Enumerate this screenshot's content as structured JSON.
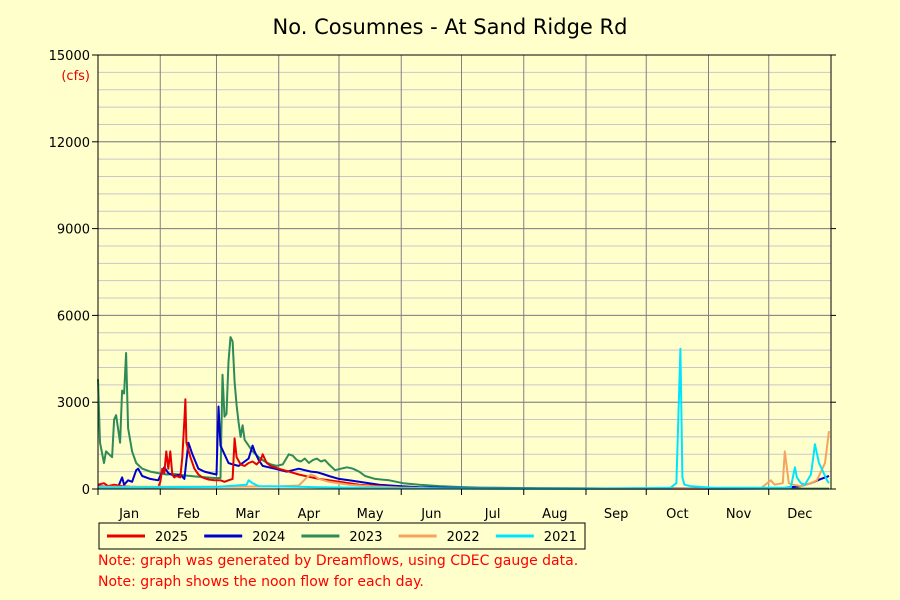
{
  "chart_data": {
    "type": "line",
    "title": "No. Cosumnes - At Sand Ridge Rd",
    "ylabel": "(cfs)",
    "ylim": [
      0,
      15000
    ],
    "yticks": [
      0,
      3000,
      6000,
      9000,
      12000,
      15000
    ],
    "xlim": [
      0,
      365
    ],
    "months": [
      "Jan",
      "Feb",
      "Mar",
      "Apr",
      "May",
      "Jun",
      "Jul",
      "Aug",
      "Sep",
      "Oct",
      "Nov",
      "Dec"
    ],
    "month_starts": [
      0,
      31,
      59,
      90,
      120,
      151,
      181,
      212,
      243,
      273,
      304,
      334
    ],
    "grid": true,
    "legend_position": "bottom",
    "series": [
      {
        "name": "2023",
        "color": "#2e8b57",
        "points": [
          [
            0,
            3800
          ],
          [
            1,
            1600
          ],
          [
            3,
            900
          ],
          [
            4,
            1300
          ],
          [
            7,
            1100
          ],
          [
            8,
            2400
          ],
          [
            9,
            2550
          ],
          [
            11,
            1600
          ],
          [
            12,
            3400
          ],
          [
            13,
            3300
          ],
          [
            14,
            4700
          ],
          [
            15,
            2100
          ],
          [
            17,
            1300
          ],
          [
            19,
            900
          ],
          [
            22,
            700
          ],
          [
            26,
            600
          ],
          [
            30,
            550
          ],
          [
            34,
            500
          ],
          [
            38,
            520
          ],
          [
            42,
            480
          ],
          [
            46,
            450
          ],
          [
            50,
            420
          ],
          [
            54,
            400
          ],
          [
            58,
            380
          ],
          [
            61,
            380
          ],
          [
            62,
            3950
          ],
          [
            63,
            2500
          ],
          [
            64,
            2600
          ],
          [
            65,
            4400
          ],
          [
            66,
            5250
          ],
          [
            67,
            5100
          ],
          [
            68,
            3700
          ],
          [
            69,
            2900
          ],
          [
            70,
            2300
          ],
          [
            71,
            1800
          ],
          [
            72,
            2200
          ],
          [
            73,
            1700
          ],
          [
            75,
            1500
          ],
          [
            77,
            1300
          ],
          [
            80,
            1100
          ],
          [
            83,
            950
          ],
          [
            86,
            850
          ],
          [
            89,
            800
          ],
          [
            92,
            850
          ],
          [
            95,
            1200
          ],
          [
            97,
            1150
          ],
          [
            99,
            1000
          ],
          [
            101,
            950
          ],
          [
            103,
            1050
          ],
          [
            105,
            900
          ],
          [
            107,
            1000
          ],
          [
            109,
            1050
          ],
          [
            111,
            950
          ],
          [
            113,
            1000
          ],
          [
            115,
            850
          ],
          [
            118,
            650
          ],
          [
            121,
            700
          ],
          [
            124,
            750
          ],
          [
            127,
            700
          ],
          [
            130,
            600
          ],
          [
            133,
            450
          ],
          [
            138,
            350
          ],
          [
            145,
            300
          ],
          [
            152,
            200
          ],
          [
            160,
            150
          ],
          [
            170,
            100
          ],
          [
            180,
            70
          ],
          [
            190,
            50
          ],
          [
            200,
            40
          ],
          [
            220,
            30
          ],
          [
            250,
            20
          ],
          [
            280,
            20
          ],
          [
            310,
            15
          ],
          [
            340,
            15
          ],
          [
            364,
            15
          ]
        ]
      },
      {
        "name": "2024",
        "color": "#0000cc",
        "points": [
          [
            0,
            100
          ],
          [
            5,
            80
          ],
          [
            10,
            70
          ],
          [
            12,
            400
          ],
          [
            13,
            150
          ],
          [
            15,
            300
          ],
          [
            17,
            250
          ],
          [
            19,
            650
          ],
          [
            20,
            700
          ],
          [
            22,
            450
          ],
          [
            26,
            350
          ],
          [
            30,
            300
          ],
          [
            33,
            750
          ],
          [
            35,
            550
          ],
          [
            38,
            450
          ],
          [
            41,
            500
          ],
          [
            43,
            350
          ],
          [
            45,
            1600
          ],
          [
            47,
            1200
          ],
          [
            50,
            700
          ],
          [
            53,
            600
          ],
          [
            56,
            550
          ],
          [
            59,
            500
          ],
          [
            60,
            2850
          ],
          [
            61,
            1500
          ],
          [
            63,
            1200
          ],
          [
            65,
            900
          ],
          [
            67,
            850
          ],
          [
            70,
            800
          ],
          [
            72,
            900
          ],
          [
            75,
            1050
          ],
          [
            77,
            1500
          ],
          [
            78,
            1300
          ],
          [
            80,
            1000
          ],
          [
            82,
            800
          ],
          [
            85,
            750
          ],
          [
            88,
            700
          ],
          [
            91,
            650
          ],
          [
            94,
            600
          ],
          [
            97,
            650
          ],
          [
            100,
            700
          ],
          [
            103,
            650
          ],
          [
            106,
            600
          ],
          [
            109,
            580
          ],
          [
            112,
            520
          ],
          [
            115,
            450
          ],
          [
            120,
            350
          ],
          [
            125,
            300
          ],
          [
            130,
            250
          ],
          [
            135,
            200
          ],
          [
            140,
            150
          ],
          [
            150,
            100
          ],
          [
            160,
            60
          ],
          [
            180,
            30
          ],
          [
            200,
            20
          ],
          [
            250,
            10
          ],
          [
            300,
            10
          ],
          [
            340,
            20
          ],
          [
            350,
            100
          ],
          [
            355,
            200
          ],
          [
            360,
            350
          ],
          [
            364,
            450
          ]
        ]
      },
      {
        "name": "2025",
        "color": "#e60000",
        "points": [
          [
            0,
            150
          ],
          [
            3,
            200
          ],
          [
            5,
            100
          ],
          [
            8,
            150
          ],
          [
            12,
            100
          ],
          [
            16,
            80
          ],
          [
            20,
            70
          ],
          [
            24,
            60
          ],
          [
            28,
            60
          ],
          [
            30,
            60
          ],
          [
            31,
            250
          ],
          [
            32,
            700
          ],
          [
            33,
            550
          ],
          [
            34,
            1300
          ],
          [
            35,
            700
          ],
          [
            36,
            1300
          ],
          [
            37,
            500
          ],
          [
            38,
            400
          ],
          [
            39,
            450
          ],
          [
            41,
            400
          ],
          [
            42,
            1100
          ],
          [
            43,
            2400
          ],
          [
            43.5,
            3100
          ],
          [
            44,
            1600
          ],
          [
            46,
            1100
          ],
          [
            48,
            700
          ],
          [
            50,
            500
          ],
          [
            52,
            400
          ],
          [
            55,
            330
          ],
          [
            58,
            300
          ],
          [
            61,
            300
          ],
          [
            63,
            250
          ],
          [
            65,
            300
          ],
          [
            67,
            350
          ],
          [
            68,
            1750
          ],
          [
            69,
            1100
          ],
          [
            71,
            850
          ],
          [
            73,
            800
          ],
          [
            75,
            900
          ],
          [
            77,
            950
          ],
          [
            79,
            850
          ],
          [
            81,
            1000
          ],
          [
            82,
            1200
          ],
          [
            84,
            900
          ],
          [
            86,
            800
          ],
          [
            88,
            750
          ],
          [
            90,
            700
          ],
          [
            95,
            600
          ],
          [
            100,
            500
          ],
          [
            105,
            420
          ],
          [
            110,
            350
          ],
          [
            115,
            300
          ],
          [
            120,
            250
          ],
          [
            125,
            200
          ],
          [
            130,
            150
          ],
          [
            140,
            100
          ],
          [
            150,
            60
          ],
          [
            160,
            40
          ]
        ]
      },
      {
        "name": "2022",
        "color": "#f4a460",
        "points": [
          [
            0,
            80
          ],
          [
            30,
            80
          ],
          [
            60,
            80
          ],
          [
            90,
            90
          ],
          [
            100,
            120
          ],
          [
            104,
            400
          ],
          [
            106,
            500
          ],
          [
            108,
            450
          ],
          [
            110,
            350
          ],
          [
            115,
            250
          ],
          [
            120,
            200
          ],
          [
            125,
            150
          ],
          [
            130,
            120
          ],
          [
            140,
            80
          ],
          [
            150,
            50
          ],
          [
            170,
            20
          ],
          [
            200,
            10
          ],
          [
            250,
            5
          ],
          [
            300,
            10
          ],
          [
            330,
            20
          ],
          [
            335,
            300
          ],
          [
            337,
            150
          ],
          [
            341,
            200
          ],
          [
            342,
            1300
          ],
          [
            344,
            200
          ],
          [
            346,
            150
          ],
          [
            350,
            100
          ],
          [
            355,
            200
          ],
          [
            358,
            300
          ],
          [
            362,
            900
          ],
          [
            364,
            2000
          ]
        ]
      },
      {
        "name": "2021",
        "color": "#00e5ff",
        "points": [
          [
            0,
            50
          ],
          [
            30,
            60
          ],
          [
            60,
            80
          ],
          [
            74,
            150
          ],
          [
            75,
            300
          ],
          [
            77,
            200
          ],
          [
            80,
            100
          ],
          [
            90,
            90
          ],
          [
            100,
            80
          ],
          [
            110,
            60
          ],
          [
            130,
            40
          ],
          [
            160,
            20
          ],
          [
            200,
            10
          ],
          [
            240,
            10
          ],
          [
            260,
            20
          ],
          [
            270,
            30
          ],
          [
            285,
            40
          ],
          [
            288,
            200
          ],
          [
            290,
            4850
          ],
          [
            291,
            400
          ],
          [
            292,
            150
          ],
          [
            295,
            100
          ],
          [
            305,
            50
          ],
          [
            320,
            40
          ],
          [
            345,
            50
          ],
          [
            347,
            750
          ],
          [
            348,
            400
          ],
          [
            350,
            200
          ],
          [
            352,
            150
          ],
          [
            355,
            500
          ],
          [
            356,
            1000
          ],
          [
            357,
            1550
          ],
          [
            359,
            900
          ],
          [
            361,
            600
          ],
          [
            363,
            300
          ],
          [
            364,
            200
          ]
        ]
      }
    ]
  },
  "notes": [
    "Note: graph was generated by Dreamflows, using CDEC gauge data.",
    "Note: graph shows the noon flow for each day."
  ]
}
